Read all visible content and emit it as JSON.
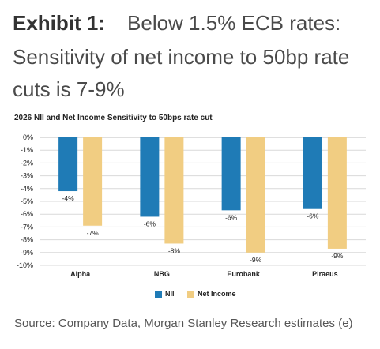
{
  "exhibit": {
    "label": "Exhibit 1:",
    "title_line1": "Below 1.5% ECB rates:",
    "title_line2": "Sensitivity of net income to 50bp rate",
    "title_line3": "cuts is 7-9%"
  },
  "chart_title": "2026 NII and Net Income Sensitivity to 50bps rate cut",
  "source": "Source: Company Data, Morgan Stanley Research estimates (e)",
  "colors": {
    "nii": "#1f7bb6",
    "net_income": "#f1cd82",
    "grid": "#d9d9d9",
    "axis": "#bfbfbf"
  },
  "chart_data": {
    "type": "bar",
    "title": "2026 NII and Net Income Sensitivity to 50bps rate cut",
    "categories": [
      "Alpha",
      "NBG",
      "Eurobank",
      "Piraeus"
    ],
    "series": [
      {
        "name": "NII",
        "values": [
          -4.2,
          -6.2,
          -5.7,
          -5.6
        ],
        "labels": [
          "-4%",
          "-6%",
          "-6%",
          "-6%"
        ]
      },
      {
        "name": "Net Income",
        "values": [
          -6.9,
          -8.3,
          -9.0,
          -8.7
        ],
        "labels": [
          "-7%",
          "-8%",
          "-9%",
          "-9%"
        ]
      }
    ],
    "ylim": [
      -10,
      0
    ],
    "yticks": [
      "0%",
      "-1%",
      "-2%",
      "-3%",
      "-4%",
      "-5%",
      "-6%",
      "-7%",
      "-8%",
      "-9%",
      "-10%"
    ],
    "grid": true,
    "legend": "bottom-center"
  }
}
